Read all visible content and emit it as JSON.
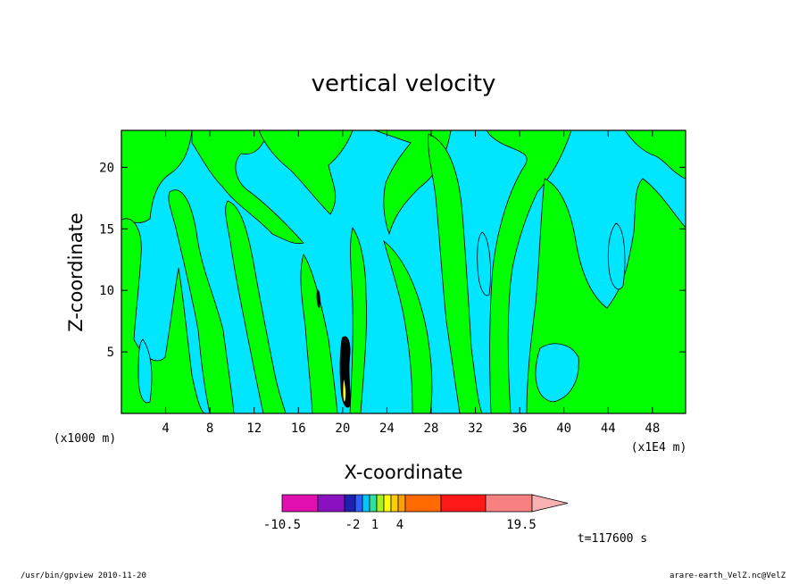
{
  "chart_data": {
    "type": "heatmap",
    "title": "vertical velocity",
    "xlabel": "X-coordinate",
    "ylabel": "Z-coordinate",
    "x_ticks": [
      "4",
      "8",
      "12",
      "16",
      "20",
      "24",
      "28",
      "32",
      "36",
      "40",
      "44",
      "48"
    ],
    "y_ticks": [
      "5",
      "10",
      "15",
      "20"
    ],
    "x_units": "(x1E4 m)",
    "y_units": "(x1000 m)",
    "xlim": [
      0,
      51
    ],
    "ylim": [
      0,
      23
    ],
    "time_label": "t=117600 s",
    "colorbar": {
      "tick_labels": [
        "-10.5",
        "-2",
        "1",
        "4",
        "19.5"
      ],
      "colors": [
        "#e010b0",
        "#8a10c0",
        "#2020b0",
        "#2f60ff",
        "#00c8ff",
        "#30e0a0",
        "#a8f020",
        "#ffff00",
        "#ffd000",
        "#ffa000",
        "#ff6a00",
        "#ff1818",
        "#f88080",
        "#f8b0b0"
      ]
    },
    "background_levels": {
      "weak_positive_color": "#00e6ff",
      "weak_negative_color": "#00ff00",
      "strong_core_color": "#000000"
    }
  },
  "footer": {
    "left": "/usr/bin/gpview   2010-11-20",
    "right": "arare-earth_VelZ.nc@VelZ"
  }
}
